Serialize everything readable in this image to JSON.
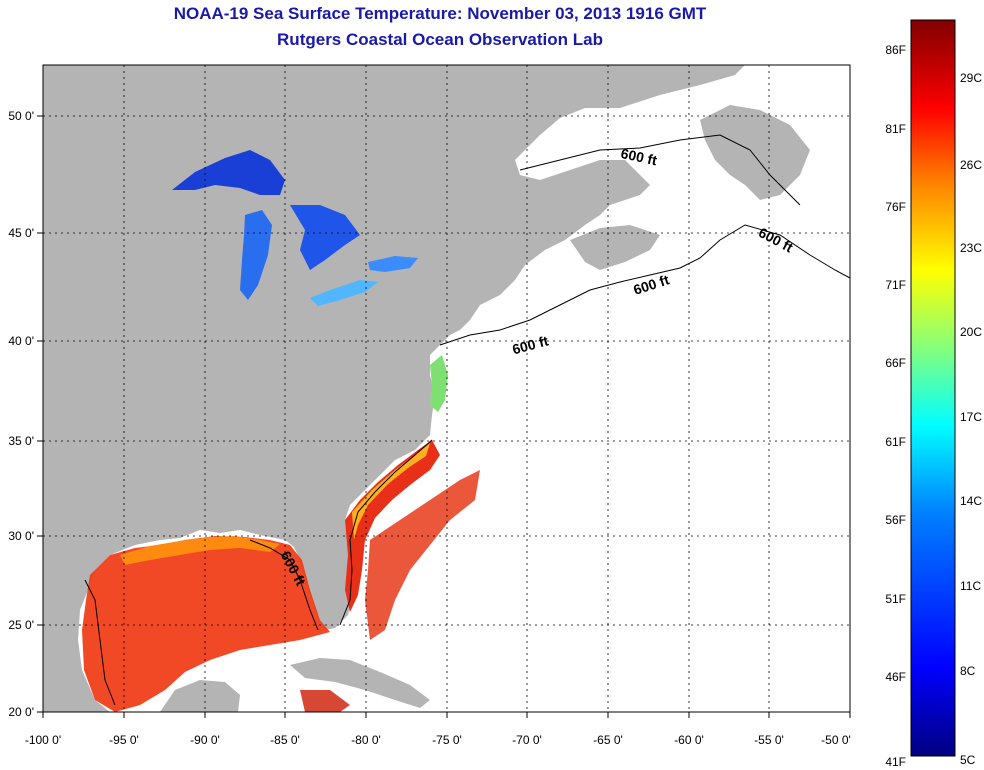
{
  "header": {
    "title": "NOAA-19 Sea Surface Temperature:  November 03, 2013 1916 GMT",
    "subtitle": "Rutgers Coastal Ocean Observation Lab"
  },
  "map": {
    "longitude_ticks": [
      "-100 0'",
      "-95 0'",
      "-90 0'",
      "-85 0'",
      "-80 0'",
      "-75 0'",
      "-70 0'",
      "-65 0'",
      "-60 0'",
      "-55 0'",
      "-50 0'"
    ],
    "latitude_ticks": [
      "50 0'",
      "45 0'",
      "40 0'",
      "35 0'",
      "30 0'",
      "25 0'",
      "20 0'"
    ],
    "contour_label": "600 ft",
    "land_color": "#b4b4b4",
    "no_data_color": "#ffffff",
    "grid": true
  },
  "colorbar": {
    "fahrenheit": [
      "86F",
      "81F",
      "76F",
      "71F",
      "66F",
      "61F",
      "56F",
      "51F",
      "46F",
      "41F"
    ],
    "celsius": [
      "29C",
      "26C",
      "23C",
      "20C",
      "17C",
      "14C",
      "11C",
      "8C",
      "5C"
    ],
    "colors": [
      "#800000",
      "#ff0000",
      "#ff8000",
      "#ffff00",
      "#80ff80",
      "#00ffff",
      "#0080ff",
      "#0000ff",
      "#000080"
    ]
  }
}
